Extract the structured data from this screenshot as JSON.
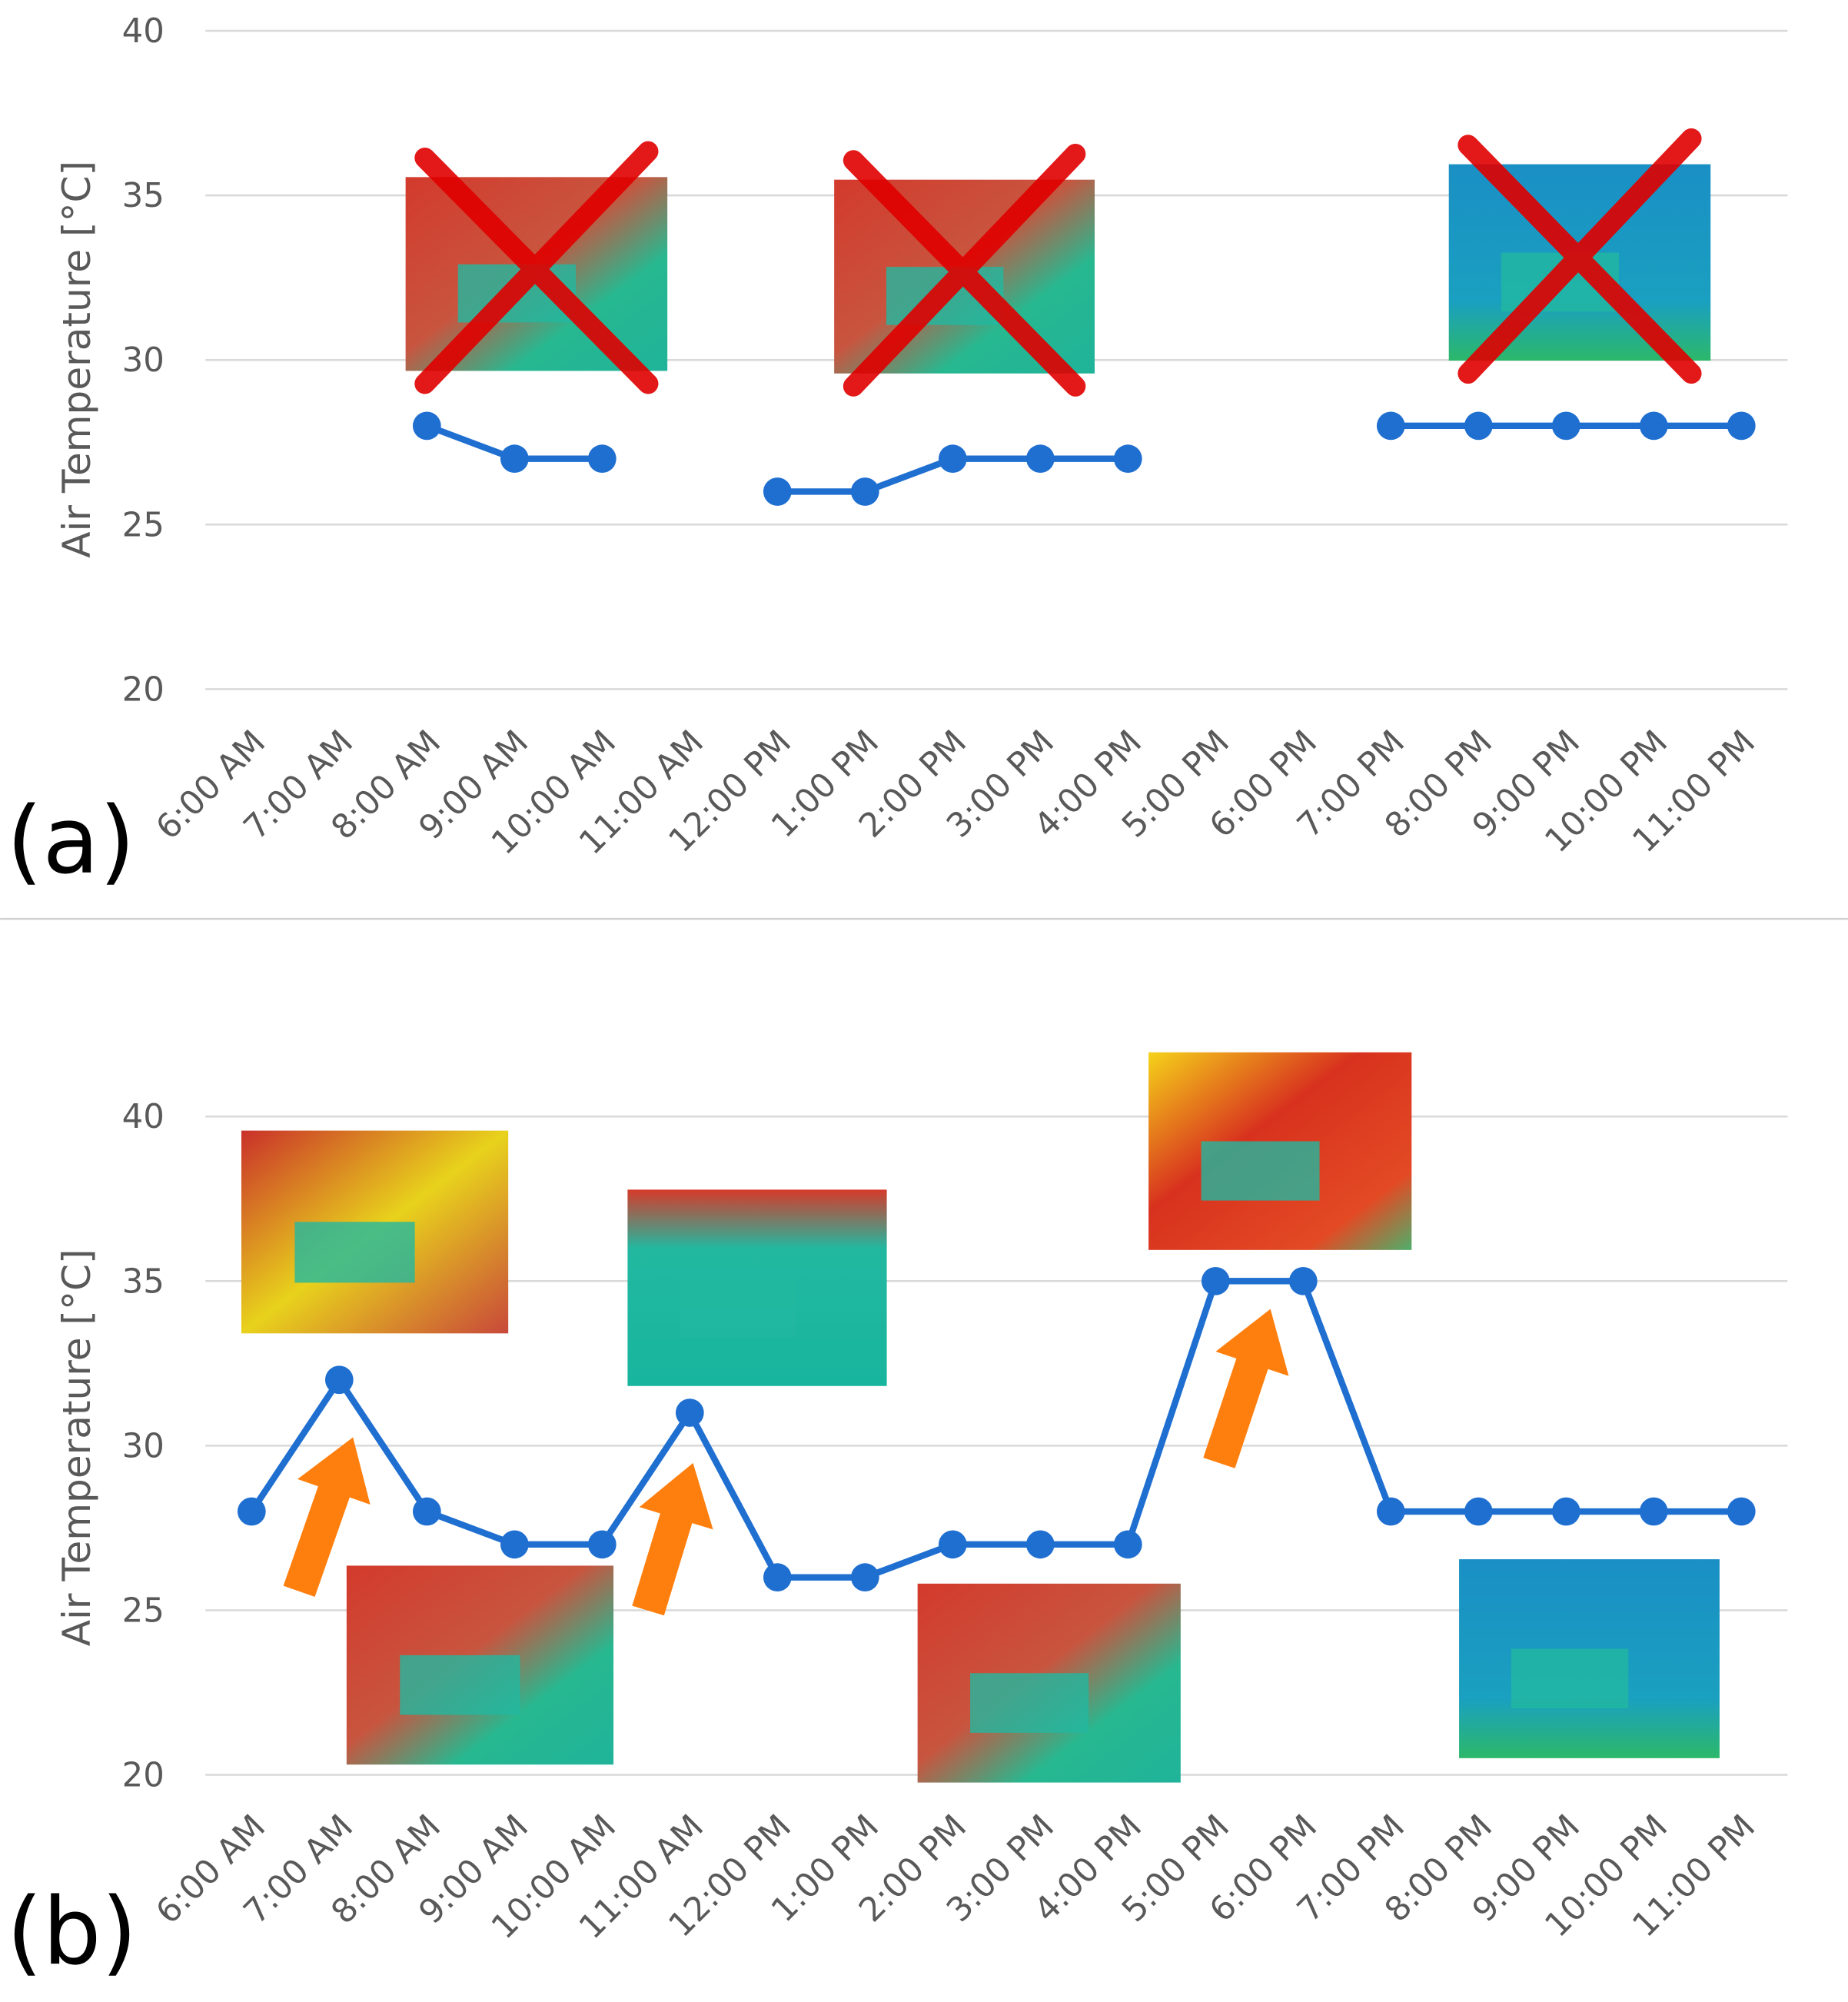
{
  "colors": {
    "series": "#1f6fd1",
    "arrow": "#ff7f0e",
    "cross": "#e00000",
    "grid": "#d9d9d9"
  },
  "chart_data": [
    {
      "type": "line",
      "panel_label": "(a)",
      "ylabel": "Air Temperature [°C]",
      "ylim": [
        20,
        40
      ],
      "yticks": [
        "20",
        "25",
        "30",
        "35",
        "40"
      ],
      "grid": true,
      "categories": [
        "6:00 AM",
        "7:00 AM",
        "8:00 AM",
        "9:00 AM",
        "10:00 AM",
        "11:00 AM",
        "12:00 PM",
        "1:00 PM",
        "2:00 PM",
        "3:00 PM",
        "4:00 PM",
        "5:00 PM",
        "6:00 PM",
        "7:00 PM",
        "8:00 PM",
        "9:00 PM",
        "10:00 PM",
        "11:00 PM"
      ],
      "series": [
        {
          "name": "Air Temperature",
          "values": [
            null,
            null,
            28,
            27,
            27,
            null,
            26,
            26,
            27,
            27,
            27,
            null,
            null,
            28,
            28,
            28,
            28,
            28
          ]
        }
      ],
      "annotations": [
        "thermal image crossed out (8-10 AM)",
        "thermal image crossed out (12-4 PM)",
        "thermal image crossed out (7-11 PM)"
      ]
    },
    {
      "type": "line",
      "panel_label": "(b)",
      "ylabel": "Air Temperature [°C]",
      "ylim": [
        20,
        40
      ],
      "yticks": [
        "20",
        "25",
        "30",
        "35",
        "40"
      ],
      "grid": true,
      "categories": [
        "6:00 AM",
        "7:00 AM",
        "8:00 AM",
        "9:00 AM",
        "10:00 AM",
        "11:00 AM",
        "12:00 PM",
        "1:00 PM",
        "2:00 PM",
        "3:00 PM",
        "4:00 PM",
        "5:00 PM",
        "6:00 PM",
        "7:00 PM",
        "8:00 PM",
        "9:00 PM",
        "10:00 PM",
        "11:00 PM"
      ],
      "series": [
        {
          "name": "Air Temperature",
          "values": [
            28,
            32,
            28,
            27,
            27,
            31,
            26,
            26,
            27,
            27,
            27,
            35,
            35,
            28,
            28,
            28,
            28,
            28
          ]
        }
      ],
      "annotations": [
        "arrow at 7:00 AM peak",
        "arrow at 11:00 AM peak",
        "arrow at 5:00 PM peak"
      ]
    }
  ]
}
